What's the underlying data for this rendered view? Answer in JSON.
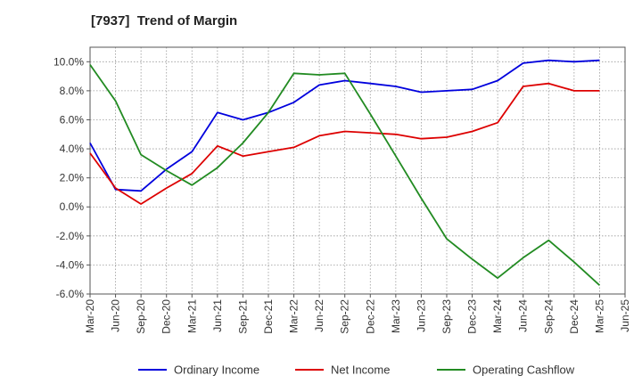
{
  "chart_data": {
    "type": "line",
    "title": "[7937]  Trend of Margin",
    "xlabel": "",
    "ylabel": "",
    "x": [
      "Mar-20",
      "Jun-20",
      "Sep-20",
      "Dec-20",
      "Mar-21",
      "Jun-21",
      "Sep-21",
      "Dec-21",
      "Mar-22",
      "Jun-22",
      "Sep-22",
      "Dec-22",
      "Mar-23",
      "Jun-23",
      "Sep-23",
      "Dec-23",
      "Mar-24",
      "Jun-24",
      "Sep-24",
      "Dec-24",
      "Mar-25",
      "Jun-25"
    ],
    "ylim": [
      -6.0,
      11.0
    ],
    "yticks": [
      "10.0%",
      "8.0%",
      "6.0%",
      "4.0%",
      "2.0%",
      "0.0%",
      "-2.0%",
      "-4.0%",
      "-6.0%"
    ],
    "ytick_values": [
      10,
      8,
      6,
      4,
      2,
      0,
      -2,
      -4,
      -6
    ],
    "grid": true,
    "legend_position": "bottom",
    "series": [
      {
        "name": "Ordinary Income",
        "color": "#0000dd",
        "values": [
          4.4,
          1.2,
          1.1,
          2.6,
          3.8,
          6.5,
          6.0,
          6.5,
          7.2,
          8.4,
          8.7,
          8.5,
          8.3,
          7.9,
          8.0,
          8.1,
          8.7,
          9.9,
          10.1,
          10.0,
          10.1,
          null
        ]
      },
      {
        "name": "Net Income",
        "color": "#dd0000",
        "values": [
          3.7,
          1.3,
          0.2,
          1.3,
          2.3,
          4.2,
          3.5,
          3.8,
          4.1,
          4.9,
          5.2,
          5.1,
          5.0,
          4.7,
          4.8,
          5.2,
          5.8,
          8.3,
          8.5,
          8.0,
          8.0,
          null
        ]
      },
      {
        "name": "Operating Cashflow",
        "color": "#228b22",
        "values": [
          9.8,
          7.3,
          3.6,
          2.5,
          1.5,
          2.7,
          4.4,
          6.5,
          9.2,
          9.1,
          9.2,
          6.4,
          3.5,
          0.6,
          -2.2,
          -3.6,
          -4.9,
          -3.5,
          -2.3,
          -3.8,
          -5.4,
          null
        ]
      }
    ]
  }
}
